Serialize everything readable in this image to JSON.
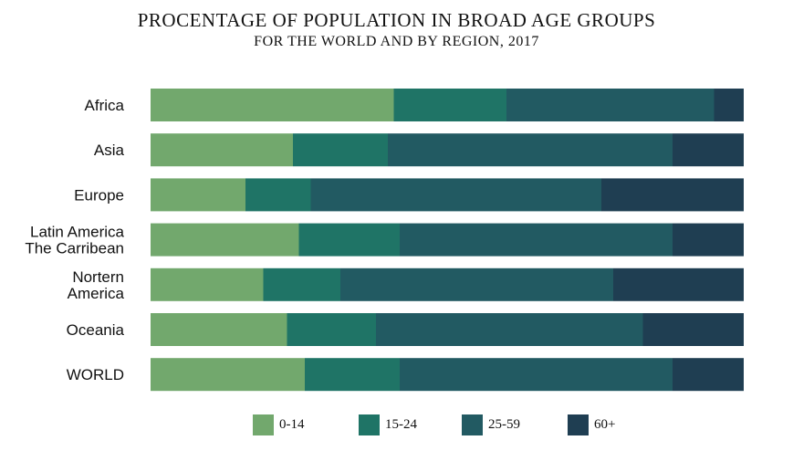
{
  "chart_data": {
    "type": "bar",
    "orientation": "horizontal",
    "stacked": true,
    "title": "PROCENTAGE OF POPULATION IN BROAD AGE GROUPS",
    "subtitle": "FOR THE WORLD AND BY REGION, 2017",
    "categories": [
      [
        "Africa"
      ],
      [
        "Asia"
      ],
      [
        "Europe"
      ],
      [
        "Latin America",
        "The Carribean"
      ],
      [
        "Nortern",
        "America"
      ],
      [
        "Oceania"
      ],
      [
        "WORLD"
      ]
    ],
    "series": [
      {
        "name": "0-14",
        "color": "#72a86d",
        "values": [
          41,
          24,
          16,
          25,
          19,
          23,
          26
        ]
      },
      {
        "name": "15-24",
        "color": "#1f7466",
        "values": [
          19,
          16,
          11,
          17,
          13,
          15,
          16
        ]
      },
      {
        "name": "25-59",
        "color": "#225a62",
        "values": [
          35,
          48,
          49,
          46,
          46,
          45,
          46
        ]
      },
      {
        "name": "60+",
        "color": "#1f3e52",
        "values": [
          5,
          12,
          24,
          12,
          22,
          17,
          12
        ]
      }
    ],
    "xlim": [
      0,
      100
    ],
    "grid": false,
    "legend_position": "bottom"
  }
}
